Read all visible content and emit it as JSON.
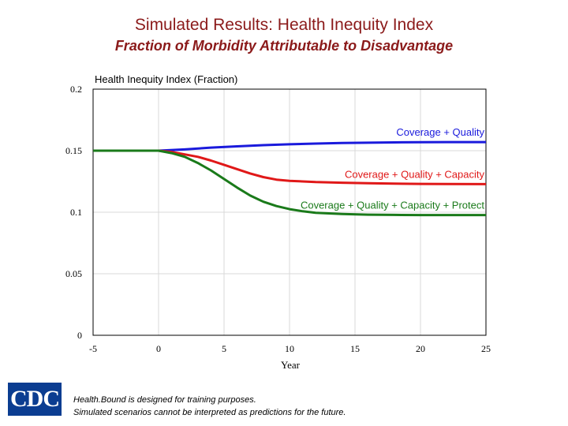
{
  "header": {
    "title": "Simulated Results: Health Inequity Index",
    "subtitle": "Fraction of Morbidity Attributable to Disadvantage"
  },
  "chart_data": {
    "type": "line",
    "title": "",
    "xlabel": "Year",
    "ylabel": "Health Inequity Index (Fraction)",
    "xlim": [
      -5,
      25
    ],
    "ylim": [
      0,
      0.2
    ],
    "x_ticks": [
      "-5",
      "0",
      "5",
      "10",
      "15",
      "20",
      "25"
    ],
    "y_ticks": [
      "0.2",
      "0.15",
      "0.1",
      "0.05",
      "0"
    ],
    "grid": true,
    "series": [
      {
        "name": "Coverage + Quality",
        "color": "#1a1adc",
        "x": [
          -5,
          0,
          2,
          4,
          6,
          8,
          10,
          12,
          14,
          16,
          18,
          20,
          22,
          25
        ],
        "y": [
          0.15,
          0.15,
          0.151,
          0.1525,
          0.1535,
          0.1545,
          0.1552,
          0.1558,
          0.1562,
          0.1565,
          0.1567,
          0.1569,
          0.157,
          0.157
        ]
      },
      {
        "name": "Coverage + Quality + Capacity",
        "color": "#e01818",
        "x": [
          -5,
          0,
          1,
          2,
          3,
          4,
          5,
          6,
          7,
          8,
          9,
          10,
          12,
          14,
          16,
          18,
          20,
          22,
          25
        ],
        "y": [
          0.15,
          0.15,
          0.149,
          0.147,
          0.145,
          0.142,
          0.1385,
          0.135,
          0.1315,
          0.1285,
          0.1265,
          0.1255,
          0.1245,
          0.124,
          0.1235,
          0.1232,
          0.123,
          0.1229,
          0.1228
        ]
      },
      {
        "name": "Coverage + Quality + Capacity + Protect",
        "color": "#1a7a1a",
        "x": [
          -5,
          0,
          1,
          2,
          3,
          4,
          5,
          6,
          7,
          8,
          9,
          10,
          11,
          12,
          14,
          16,
          18,
          20,
          22,
          25
        ],
        "y": [
          0.15,
          0.15,
          0.148,
          0.145,
          0.14,
          0.134,
          0.127,
          0.12,
          0.1135,
          0.1085,
          0.105,
          0.1025,
          0.1008,
          0.0995,
          0.0985,
          0.098,
          0.0978,
          0.0977,
          0.0977,
          0.0977
        ]
      }
    ]
  },
  "footer": {
    "logo_text": "CDC",
    "disclaimer_line1": "Health.Bound is designed for training purposes.",
    "disclaimer_line2": "Simulated scenarios cannot be interpreted as predictions for the future."
  }
}
